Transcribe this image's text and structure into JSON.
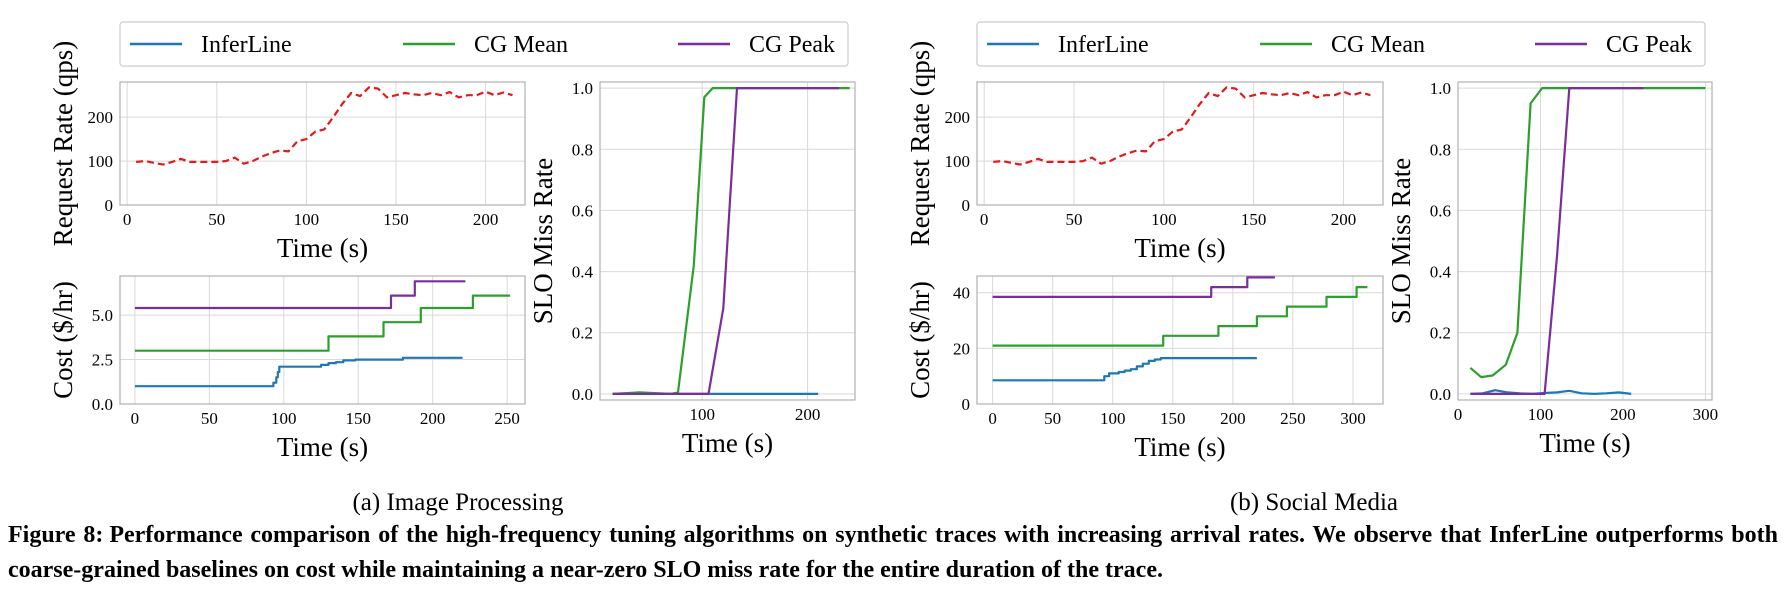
{
  "figure": {
    "label": "Figure 8:",
    "text": "Performance comparison of the high-frequency tuning algorithms on synthetic traces with increasing arrival rates. We observe that InferLine outperforms both coarse-grained baselines on cost while maintaining a near-zero SLO miss rate for the entire duration of the trace.",
    "subcaptions": [
      "(a)  Image Processing",
      "(b)  Social Media"
    ]
  },
  "colors": {
    "inferline": "#1f77b4",
    "cg_mean": "#2ca02c",
    "cg_peak": "#7b2d9e",
    "request": "#e31a1c",
    "grid": "#d9d9d9",
    "frame": "#b0b0b0"
  },
  "legend": {
    "entries": [
      "InferLine",
      "CG Mean",
      "CG Peak"
    ]
  },
  "chart_data": [
    {
      "id": "a-rate",
      "type": "line",
      "xlabel": "Time (s)",
      "ylabel": "Request Rate (qps)",
      "xlim": [
        -4,
        222
      ],
      "ylim": [
        0,
        280
      ],
      "xticks": [
        0,
        50,
        100,
        150,
        200
      ],
      "yticks": [
        0,
        100,
        200
      ],
      "series": [
        {
          "name": "Request Rate",
          "color_key": "request",
          "dashed": true,
          "x": [
            5,
            10,
            15,
            20,
            25,
            30,
            35,
            40,
            45,
            50,
            55,
            60,
            65,
            70,
            75,
            80,
            85,
            90,
            95,
            100,
            105,
            110,
            115,
            120,
            125,
            130,
            135,
            140,
            145,
            150,
            155,
            160,
            165,
            170,
            175,
            180,
            185,
            190,
            195,
            200,
            205,
            210,
            215
          ],
          "y": [
            98,
            100,
            96,
            92,
            98,
            105,
            98,
            98,
            98,
            98,
            100,
            108,
            94,
            100,
            110,
            118,
            124,
            122,
            145,
            150,
            167,
            172,
            200,
            230,
            255,
            248,
            268,
            265,
            245,
            250,
            255,
            252,
            250,
            255,
            250,
            257,
            245,
            250,
            250,
            258,
            250,
            256,
            250
          ]
        }
      ]
    },
    {
      "id": "a-cost",
      "type": "line",
      "xlabel": "Time (s)",
      "ylabel": "Cost ($/hr)",
      "xlim": [
        -10,
        262
      ],
      "ylim": [
        0,
        7.2
      ],
      "xticks": [
        0,
        50,
        100,
        150,
        200,
        250
      ],
      "yticks": [
        0.0,
        2.5,
        5.0
      ],
      "series": [
        {
          "name": "InferLine",
          "color_key": "inferline",
          "x": [
            0,
            93,
            93,
            95,
            95,
            96,
            96,
            97,
            97,
            125,
            125,
            130,
            130,
            135,
            135,
            140,
            140,
            148,
            148,
            180,
            180,
            220
          ],
          "y": [
            1.0,
            1.0,
            1.2,
            1.2,
            1.5,
            1.5,
            1.8,
            1.8,
            2.1,
            2.1,
            2.2,
            2.2,
            2.3,
            2.3,
            2.35,
            2.35,
            2.45,
            2.45,
            2.5,
            2.5,
            2.6,
            2.6
          ]
        },
        {
          "name": "CG Mean",
          "color_key": "cg_mean",
          "x": [
            0,
            130,
            130,
            167,
            167,
            192,
            192,
            227,
            227,
            252
          ],
          "y": [
            3.0,
            3.0,
            3.8,
            3.8,
            4.6,
            4.6,
            5.4,
            5.4,
            6.1,
            6.1
          ]
        },
        {
          "name": "CG Peak",
          "color_key": "cg_peak",
          "x": [
            0,
            172,
            172,
            188,
            188,
            222
          ],
          "y": [
            5.4,
            5.4,
            6.1,
            6.1,
            6.9,
            6.9
          ]
        }
      ]
    },
    {
      "id": "a-slo",
      "type": "line",
      "xlabel": "Time (s)",
      "ylabel": "SLO Miss Rate",
      "xlim": [
        3,
        245
      ],
      "ylim": [
        -0.02,
        1.02
      ],
      "xticks": [
        100,
        200
      ],
      "yticks": [
        0.0,
        0.2,
        0.4,
        0.6,
        0.8,
        1.0
      ],
      "series": [
        {
          "name": "InferLine",
          "color_key": "inferline",
          "x": [
            15,
            60,
            110,
            210
          ],
          "y": [
            0.0,
            0.0,
            0.0,
            0.0
          ]
        },
        {
          "name": "CG Mean",
          "color_key": "cg_mean",
          "x": [
            15,
            40,
            70,
            77,
            92,
            102,
            110,
            150,
            200,
            240
          ],
          "y": [
            0.0,
            0.005,
            0.0,
            0.005,
            0.42,
            0.97,
            1.0,
            1.0,
            1.0,
            1.0
          ]
        },
        {
          "name": "CG Peak",
          "color_key": "cg_peak",
          "x": [
            15,
            100,
            106,
            120,
            133,
            150,
            200,
            230
          ],
          "y": [
            0.0,
            0.0,
            0.0,
            0.28,
            1.0,
            1.0,
            1.0,
            1.0
          ]
        }
      ]
    },
    {
      "id": "b-rate",
      "type": "line",
      "xlabel": "Time (s)",
      "ylabel": "Request Rate (qps)",
      "xlim": [
        -4,
        222
      ],
      "ylim": [
        0,
        280
      ],
      "xticks": [
        0,
        50,
        100,
        150,
        200
      ],
      "yticks": [
        0,
        100,
        200
      ],
      "series": [
        {
          "name": "Request Rate",
          "color_key": "request",
          "dashed": true,
          "x": [
            5,
            10,
            15,
            20,
            25,
            30,
            35,
            40,
            45,
            50,
            55,
            60,
            65,
            70,
            75,
            80,
            85,
            90,
            95,
            100,
            105,
            110,
            115,
            120,
            125,
            130,
            135,
            140,
            145,
            150,
            155,
            160,
            165,
            170,
            175,
            180,
            185,
            190,
            195,
            200,
            205,
            210,
            215
          ],
          "y": [
            98,
            100,
            96,
            92,
            98,
            105,
            98,
            98,
            98,
            98,
            100,
            108,
            94,
            100,
            110,
            118,
            124,
            122,
            145,
            150,
            167,
            172,
            200,
            230,
            255,
            248,
            268,
            265,
            245,
            250,
            255,
            252,
            250,
            255,
            250,
            257,
            245,
            250,
            250,
            258,
            250,
            256,
            250
          ]
        }
      ]
    },
    {
      "id": "b-cost",
      "type": "line",
      "xlabel": "Time (s)",
      "ylabel": "Cost ($/hr)",
      "xlim": [
        -13,
        325
      ],
      "ylim": [
        0,
        46
      ],
      "xticks": [
        0,
        50,
        100,
        150,
        200,
        250,
        300
      ],
      "yticks": [
        0,
        20,
        40
      ],
      "series": [
        {
          "name": "InferLine",
          "color_key": "inferline",
          "x": [
            0,
            93,
            93,
            97,
            97,
            105,
            105,
            110,
            110,
            115,
            115,
            120,
            120,
            125,
            125,
            130,
            130,
            135,
            135,
            140,
            140,
            220
          ],
          "y": [
            8.5,
            8.5,
            10,
            10,
            11,
            11,
            11.5,
            11.5,
            12,
            12,
            12.5,
            12.5,
            13.5,
            13.5,
            14.5,
            14.5,
            15.5,
            15.5,
            16,
            16,
            16.5,
            16.5
          ]
        },
        {
          "name": "CG Mean",
          "color_key": "cg_mean",
          "x": [
            0,
            142,
            142,
            188,
            188,
            220,
            220,
            245,
            245,
            278,
            278,
            303,
            303,
            312
          ],
          "y": [
            21,
            21,
            24.5,
            24.5,
            28,
            28,
            31.5,
            31.5,
            35,
            35,
            38.5,
            38.5,
            42,
            42
          ]
        },
        {
          "name": "CG Peak",
          "color_key": "cg_peak",
          "x": [
            0,
            182,
            182,
            212,
            212,
            235
          ],
          "y": [
            38.5,
            38.5,
            42,
            42,
            45.5,
            45.5
          ]
        }
      ]
    },
    {
      "id": "b-slo",
      "type": "line",
      "xlabel": "Time (s)",
      "ylabel": "SLO Miss Rate",
      "xlim": [
        0,
        308
      ],
      "ylim": [
        -0.02,
        1.02
      ],
      "xticks": [
        0,
        100,
        200,
        300
      ],
      "yticks": [
        0.0,
        0.2,
        0.4,
        0.6,
        0.8,
        1.0
      ],
      "series": [
        {
          "name": "InferLine",
          "color_key": "inferline",
          "x": [
            15,
            30,
            45,
            60,
            75,
            90,
            105,
            120,
            135,
            150,
            165,
            180,
            195,
            210
          ],
          "y": [
            0.0,
            0.002,
            0.012,
            0.005,
            0.002,
            0.0,
            0.003,
            0.005,
            0.01,
            0.002,
            0.0,
            0.002,
            0.005,
            0.0
          ]
        },
        {
          "name": "CG Mean",
          "color_key": "cg_mean",
          "x": [
            15,
            28,
            42,
            58,
            72,
            88,
            102,
            150,
            200,
            250,
            300
          ],
          "y": [
            0.085,
            0.055,
            0.06,
            0.095,
            0.2,
            0.95,
            1.0,
            1.0,
            1.0,
            1.0,
            1.0
          ]
        },
        {
          "name": "CG Peak",
          "color_key": "cg_peak",
          "x": [
            15,
            95,
            105,
            120,
            135,
            180,
            225
          ],
          "y": [
            0.0,
            0.0,
            0.0,
            0.45,
            1.0,
            1.0,
            1.0
          ]
        }
      ]
    }
  ]
}
